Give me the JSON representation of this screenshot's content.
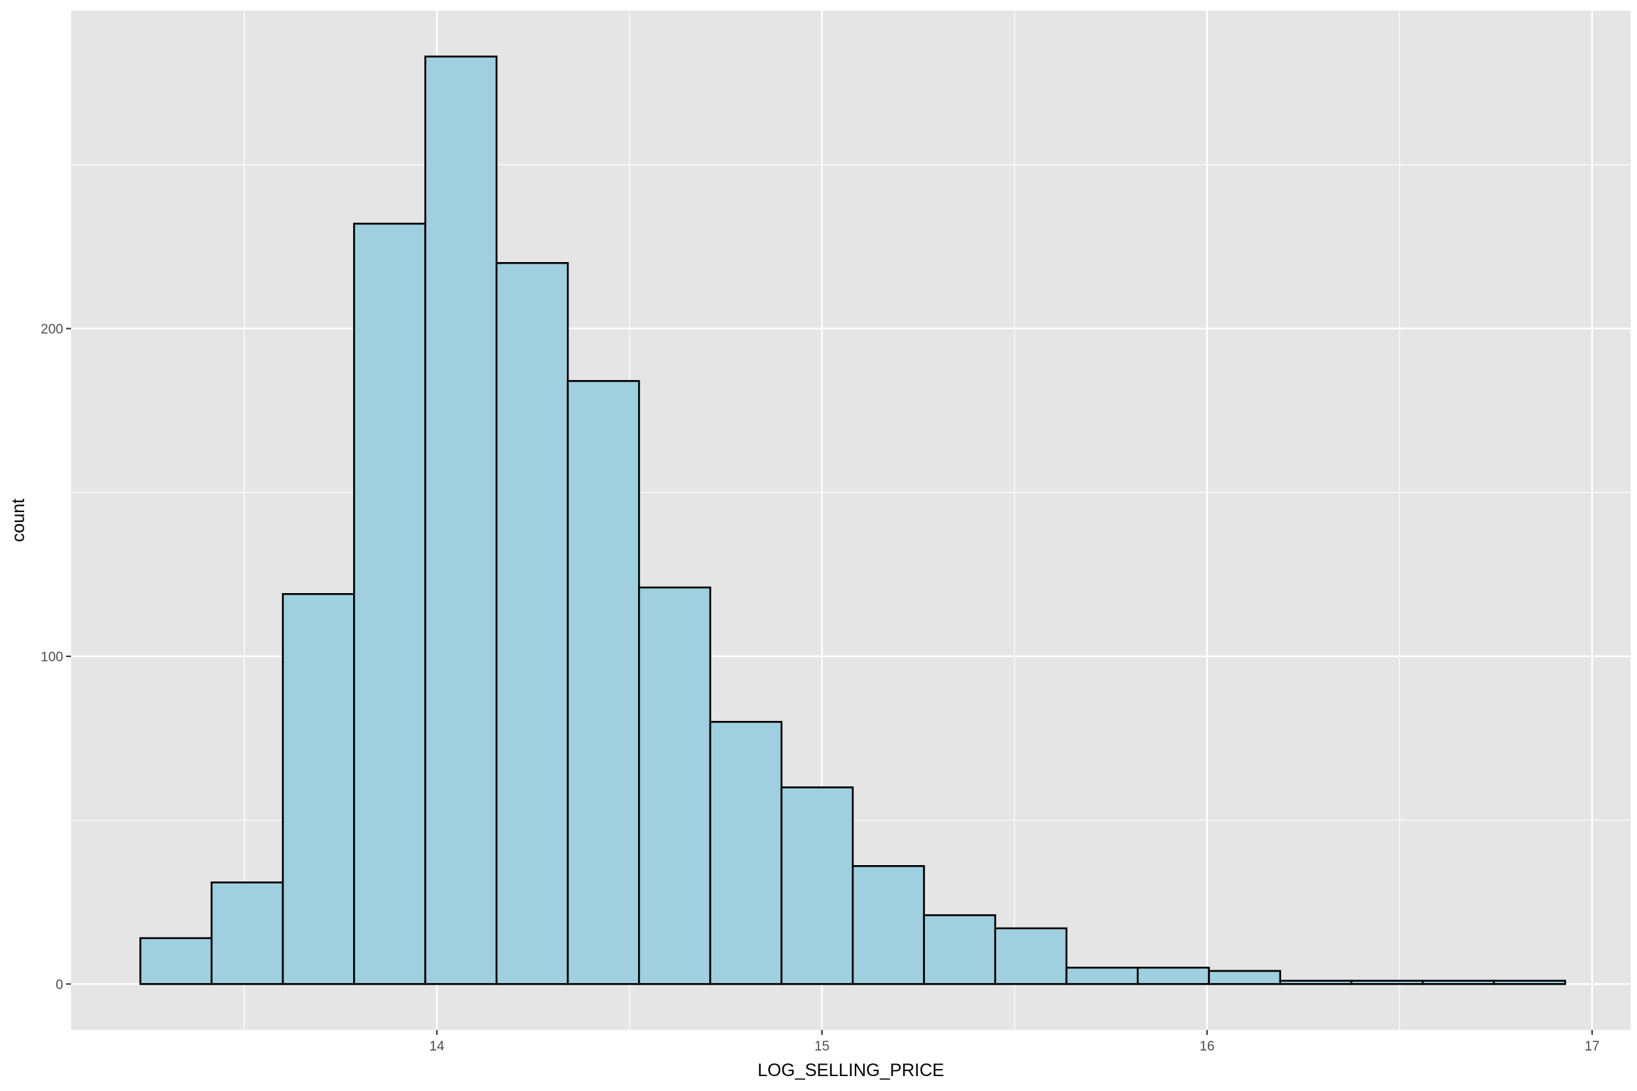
{
  "chart_data": {
    "type": "bar",
    "subtype": "histogram",
    "title": "",
    "xlabel": "LOG_SELLING_PRICE",
    "ylabel": "count",
    "bin_edges": [
      13.23,
      13.415,
      13.6,
      13.785,
      13.97,
      14.155,
      14.34,
      14.525,
      14.71,
      14.895,
      15.08,
      15.265,
      15.45,
      15.635,
      15.82,
      16.005,
      16.19,
      16.375,
      16.56,
      16.745,
      16.93
    ],
    "values": [
      14,
      31,
      119,
      232,
      283,
      220,
      184,
      121,
      80,
      60,
      36,
      21,
      17,
      5,
      5,
      4,
      1,
      1,
      1,
      1
    ],
    "xlim": [
      13.05,
      17.1
    ],
    "ylim": [
      -14,
      297
    ],
    "x_ticks": [
      14,
      15,
      16,
      17
    ],
    "x_tick_labels": [
      "14",
      "15",
      "16",
      "17"
    ],
    "y_ticks": [
      0,
      100,
      200
    ],
    "y_tick_labels": [
      "0",
      "100",
      "200"
    ],
    "x_minor_ticks": [
      13.5,
      14.5,
      15.5,
      16.5
    ],
    "y_minor_ticks": [
      50,
      150,
      250
    ],
    "grid": true,
    "legend": "none",
    "colors": {
      "panel_background": "#e5e5e5",
      "grid": "#ffffff",
      "bar_fill": "#a0cfe0",
      "bar_outline": "#000000",
      "tick_label": "#4d4d4d",
      "axis_title": "#000000"
    }
  }
}
